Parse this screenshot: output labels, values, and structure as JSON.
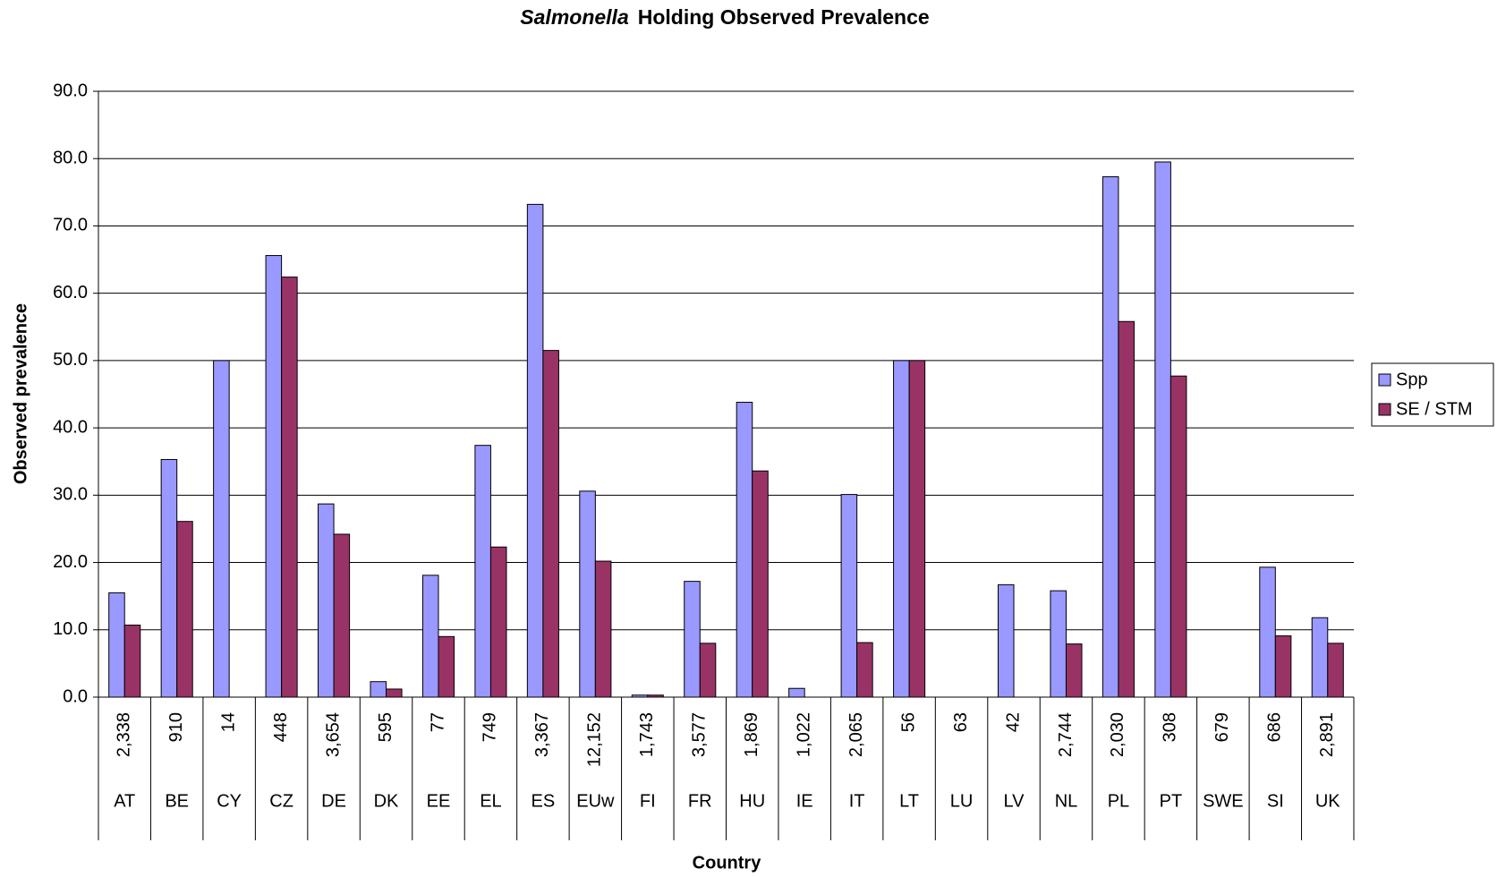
{
  "chart_data": {
    "type": "bar",
    "title": {
      "italic": "Salmonella",
      "text": "Holding Observed Prevalence"
    },
    "xlabel": "Country",
    "ylabel": "Observed prevalence",
    "categories": [
      "AT",
      "BE",
      "CY",
      "CZ",
      "DE",
      "DK",
      "EE",
      "EL",
      "ES",
      "EUw",
      "FI",
      "FR",
      "HU",
      "IE",
      "IT",
      "LT",
      "LU",
      "LV",
      "NL",
      "PL",
      "PT",
      "SWE",
      "SI",
      "UK"
    ],
    "sample_sizes": [
      "2,338",
      "910",
      "14",
      "448",
      "3,654",
      "595",
      "77",
      "749",
      "3,367",
      "12,152",
      "1,743",
      "3,577",
      "1,869",
      "1,022",
      "2,065",
      "56",
      "63",
      "42",
      "2,744",
      "2,030",
      "308",
      "679",
      "686",
      "2,891"
    ],
    "series": [
      {
        "name": "Spp",
        "color": "#9999ff",
        "values": [
          15.5,
          35.3,
          50.0,
          65.6,
          28.7,
          2.3,
          18.1,
          37.4,
          73.2,
          30.6,
          0.3,
          17.2,
          43.8,
          1.3,
          30.1,
          50.0,
          0,
          16.7,
          15.8,
          77.3,
          79.5,
          0,
          19.3,
          11.8
        ]
      },
      {
        "name": "SE / STM",
        "color": "#993366",
        "values": [
          10.7,
          26.1,
          0,
          62.4,
          24.2,
          1.2,
          9.0,
          22.3,
          51.5,
          20.2,
          0.3,
          8.0,
          33.6,
          0,
          8.1,
          50.0,
          0,
          0,
          7.9,
          55.8,
          47.7,
          0,
          9.1,
          8.0
        ]
      }
    ],
    "ylim": [
      0,
      90
    ],
    "yticks": [
      {
        "value": 0,
        "label": "0.0"
      },
      {
        "value": 10,
        "label": "10.0"
      },
      {
        "value": 20,
        "label": "20.0"
      },
      {
        "value": 30,
        "label": "30.0"
      },
      {
        "value": 40,
        "label": "40.0"
      },
      {
        "value": 50,
        "label": "50.0"
      },
      {
        "value": 60,
        "label": "60.0"
      },
      {
        "value": 70,
        "label": "70.0"
      },
      {
        "value": 80,
        "label": "80.0"
      },
      {
        "value": 90,
        "label": "90.0"
      }
    ],
    "grid": true,
    "legend": "right"
  }
}
